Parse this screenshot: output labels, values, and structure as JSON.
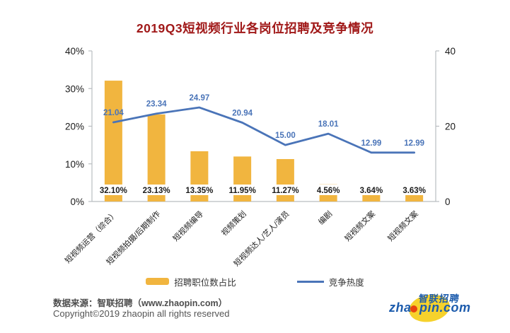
{
  "title": "2019Q3短视频行业各岗位招聘及竞争情况",
  "chart_data": {
    "type": "combo-bar-line",
    "title": "2019Q3短视频行业各岗位招聘及竞争情况",
    "categories": [
      "短视频运营（综合）",
      "短视频拍摄/后期制作",
      "短视频编导",
      "视频策划",
      "短视频达人/艺人/演员",
      "编剧",
      "短视频文案",
      "短视频文案"
    ],
    "series": [
      {
        "name": "招聘职位数占比",
        "type": "bar",
        "axis": "left",
        "values": [
          32.1,
          23.13,
          13.35,
          11.95,
          11.27,
          4.56,
          3.64,
          3.63
        ],
        "labels": [
          "32.10%",
          "23.13%",
          "13.35%",
          "11.95%",
          "11.27%",
          "4.56%",
          "3.64%",
          "3.63%"
        ]
      },
      {
        "name": "竞争热度",
        "type": "line",
        "axis": "right",
        "values": [
          21.04,
          23.34,
          24.97,
          20.94,
          15.0,
          18.01,
          12.99,
          12.99
        ],
        "labels": [
          "21.04",
          "23.34",
          "24.97",
          "20.94",
          "15.00",
          "18.01",
          "12.99",
          "12.99"
        ]
      }
    ],
    "left_axis": {
      "min": 0,
      "max": 40,
      "tick_values": [
        40,
        30,
        20,
        10,
        0
      ],
      "tick_labels": [
        "40%",
        "30%",
        "20%",
        "10%",
        "0%"
      ]
    },
    "right_axis": {
      "min": 0,
      "max": 40,
      "tick_values": [
        40,
        20,
        0
      ],
      "tick_labels": [
        "40",
        "20",
        "0"
      ]
    },
    "grid": false,
    "legend_position": "bottom"
  },
  "legend": {
    "bar_label": "招聘职位数占比",
    "line_label": "竞争热度"
  },
  "footer": {
    "source": "数据来源：智联招聘（www.zhaopin.com）",
    "copyright": "Copyright©2019 zhaopin all rights reserved"
  },
  "logo": {
    "cn": "智联招聘",
    "en_pre": "zha",
    "en_post": "pin.com"
  },
  "colors": {
    "title": "#A01818",
    "bar": "#F1B53F",
    "line": "#4A74B8",
    "line_label": "#4A74B8",
    "bar_label": "#1a1a1a",
    "axis": "#b9bdc1",
    "axis_text": "#1a1a1a",
    "logo_blue": "#1d5cad",
    "logo_yellow": "#F6D22C",
    "logo_dot": "#E8450F"
  }
}
